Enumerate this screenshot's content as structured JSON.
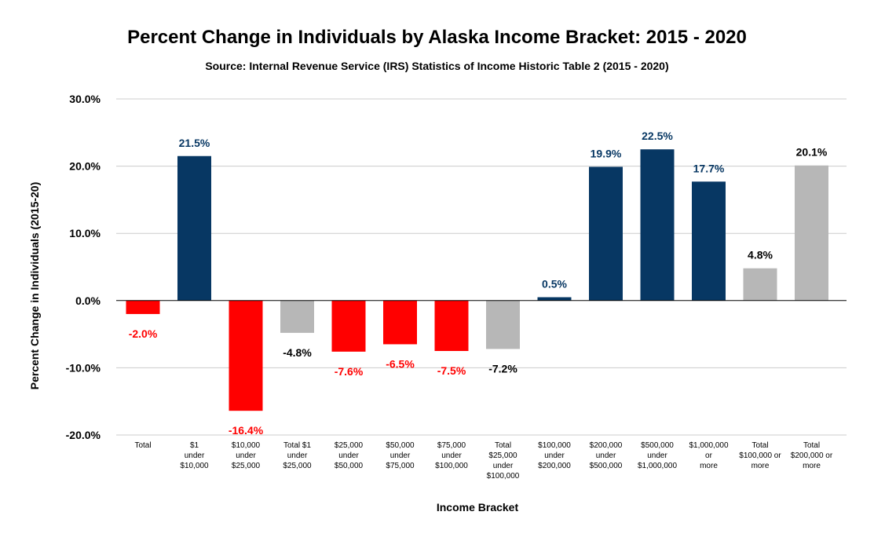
{
  "chart_data": {
    "type": "bar",
    "title": "Percent Change in Individuals by Alaska Income Bracket: 2015 - 2020",
    "subtitle": "Source: Internal Revenue Service (IRS) Statistics of Income Historic Table 2 (2015 - 2020)",
    "xlabel": "Income Bracket",
    "ylabel": "Percent Change in Individuals (2015-20)",
    "ylim": [
      -20,
      30
    ],
    "yticks": [
      30,
      20,
      10,
      0,
      -10,
      -20
    ],
    "ytick_labels": [
      "30.0%",
      "20.0%",
      "10.0%",
      "0.0%",
      "-10.0%",
      "-20.0%"
    ],
    "grid": true,
    "legend": "none",
    "categories": [
      [
        "Total"
      ],
      [
        "$1",
        "under",
        "$10,000"
      ],
      [
        "$10,000",
        "under",
        "$25,000"
      ],
      [
        "Total $1",
        "under",
        "$25,000"
      ],
      [
        "$25,000",
        "under",
        "$50,000"
      ],
      [
        "$50,000",
        "under",
        "$75,000"
      ],
      [
        "$75,000",
        "under",
        "$100,000"
      ],
      [
        "Total",
        "$25,000",
        "under",
        "$100,000"
      ],
      [
        "$100,000",
        "under",
        "$200,000"
      ],
      [
        "$200,000",
        "under",
        "$500,000"
      ],
      [
        "$500,000",
        "under",
        "$1,000,000"
      ],
      [
        "$1,000,000",
        "or",
        "more"
      ],
      [
        "Total",
        "$100,000 or",
        "more"
      ],
      [
        "Total",
        "$200,000 or",
        "more"
      ]
    ],
    "values": [
      -2.0,
      21.5,
      -16.4,
      -4.8,
      -7.6,
      -6.5,
      -7.5,
      -7.2,
      0.5,
      19.9,
      22.5,
      17.7,
      4.8,
      20.1
    ],
    "data_labels": [
      "-2.0%",
      "21.5%",
      "-16.4%",
      "-4.8%",
      "-7.6%",
      "-6.5%",
      "-7.5%",
      "-7.2%",
      "0.5%",
      "19.9%",
      "22.5%",
      "17.7%",
      "4.8%",
      "20.1%"
    ],
    "bar_colors": [
      "#ff0000",
      "#073763",
      "#ff0000",
      "#b7b7b7",
      "#ff0000",
      "#ff0000",
      "#ff0000",
      "#b7b7b7",
      "#073763",
      "#073763",
      "#073763",
      "#073763",
      "#b7b7b7",
      "#b7b7b7"
    ],
    "label_colors": [
      "#ff0000",
      "#073763",
      "#ff0000",
      "#000000",
      "#ff0000",
      "#ff0000",
      "#ff0000",
      "#000000",
      "#073763",
      "#073763",
      "#073763",
      "#073763",
      "#000000",
      "#000000"
    ]
  }
}
